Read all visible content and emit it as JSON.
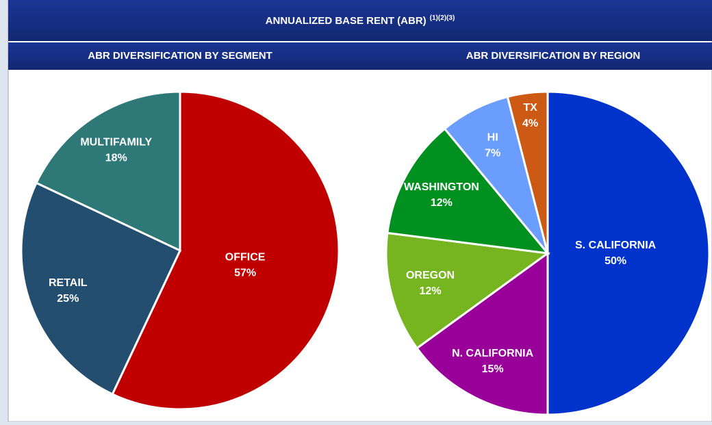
{
  "header": {
    "title": "ANNUALIZED BASE RENT (ABR)",
    "notes": "(1)(2)(3)"
  },
  "chart_data": [
    {
      "type": "pie",
      "title": "ABR DIVERSIFICATION BY SEGMENT",
      "categories": [
        "OFFICE",
        "RETAIL",
        "MULTIFAMILY"
      ],
      "values": [
        57,
        25,
        18
      ],
      "value_labels": [
        "57%",
        "25%",
        "18%"
      ],
      "colors": [
        "#c00000",
        "#244e70",
        "#2e7878"
      ]
    },
    {
      "type": "pie",
      "title": "ABR DIVERSIFICATION BY REGION",
      "categories": [
        "S. CALIFORNIA",
        "N. CALIFORNIA",
        "OREGON",
        "WASHINGTON",
        "HI",
        "TX"
      ],
      "values": [
        50,
        15,
        12,
        12,
        7,
        4
      ],
      "value_labels": [
        "50%",
        "15%",
        "12%",
        "12%",
        "7%",
        "4%"
      ],
      "colors": [
        "#0033cc",
        "#990099",
        "#76b51f",
        "#009020",
        "#6b9dff",
        "#cc5a14"
      ]
    }
  ]
}
